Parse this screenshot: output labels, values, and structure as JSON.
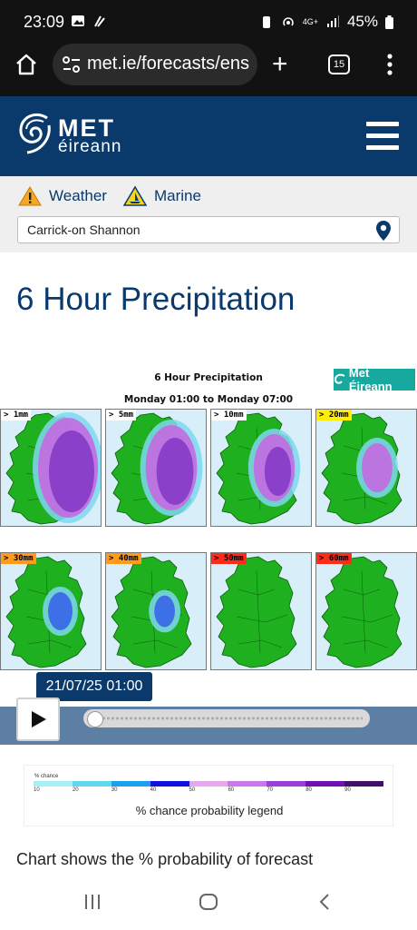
{
  "status_bar": {
    "time": "23:09",
    "battery": "45%",
    "network": "4G+"
  },
  "browser": {
    "url": "met.ie/forecasts/ens",
    "tab_count": "15"
  },
  "header": {
    "brand_line1": "MET",
    "brand_line2": "éireann"
  },
  "nav": {
    "weather_label": "Weather",
    "marine_label": "Marine",
    "location_value": "Carrick-on Shannon"
  },
  "page_title": "6 Hour Precipitation",
  "chart": {
    "title": "6 Hour Precipitation",
    "subtitle": "Monday 01:00 to Monday 07:00",
    "brand_badge": "Met Éireann",
    "panels": [
      {
        "label": "> 1mm",
        "tag_color": "#ffffff",
        "intensity": 1.0
      },
      {
        "label": "> 5mm",
        "tag_color": "#ffffff",
        "intensity": 0.8
      },
      {
        "label": "> 10mm",
        "tag_color": "#ffffff",
        "intensity": 0.55
      },
      {
        "label": "> 20mm",
        "tag_color": "#ffee00",
        "intensity": 0.3
      },
      {
        "label": "> 30mm",
        "tag_color": "#ff9a1a",
        "intensity": 0.15
      },
      {
        "label": "> 40mm",
        "tag_color": "#ff9a1a",
        "intensity": 0.06
      },
      {
        "label": "> 50mm",
        "tag_color": "#ff2a1a",
        "intensity": 0.0
      },
      {
        "label": "> 60mm",
        "tag_color": "#ff2a1a",
        "intensity": 0.0
      }
    ]
  },
  "timeline": {
    "current_time": "21/07/25 01:00",
    "play_label": "play",
    "progress": 0.0
  },
  "legend": {
    "heading": "% chance",
    "ticks": [
      "10",
      "20",
      "30",
      "40",
      "50",
      "60",
      "70",
      "80",
      "90"
    ],
    "colors": [
      "#a8f0f8",
      "#5fd8f0",
      "#1aa0f0",
      "#1010e0",
      "#e8a8f0",
      "#c878e8",
      "#9a40d8",
      "#7010b0",
      "#40106a"
    ],
    "caption": "% chance probability legend"
  },
  "description": "Chart shows the % probability of forecast"
}
